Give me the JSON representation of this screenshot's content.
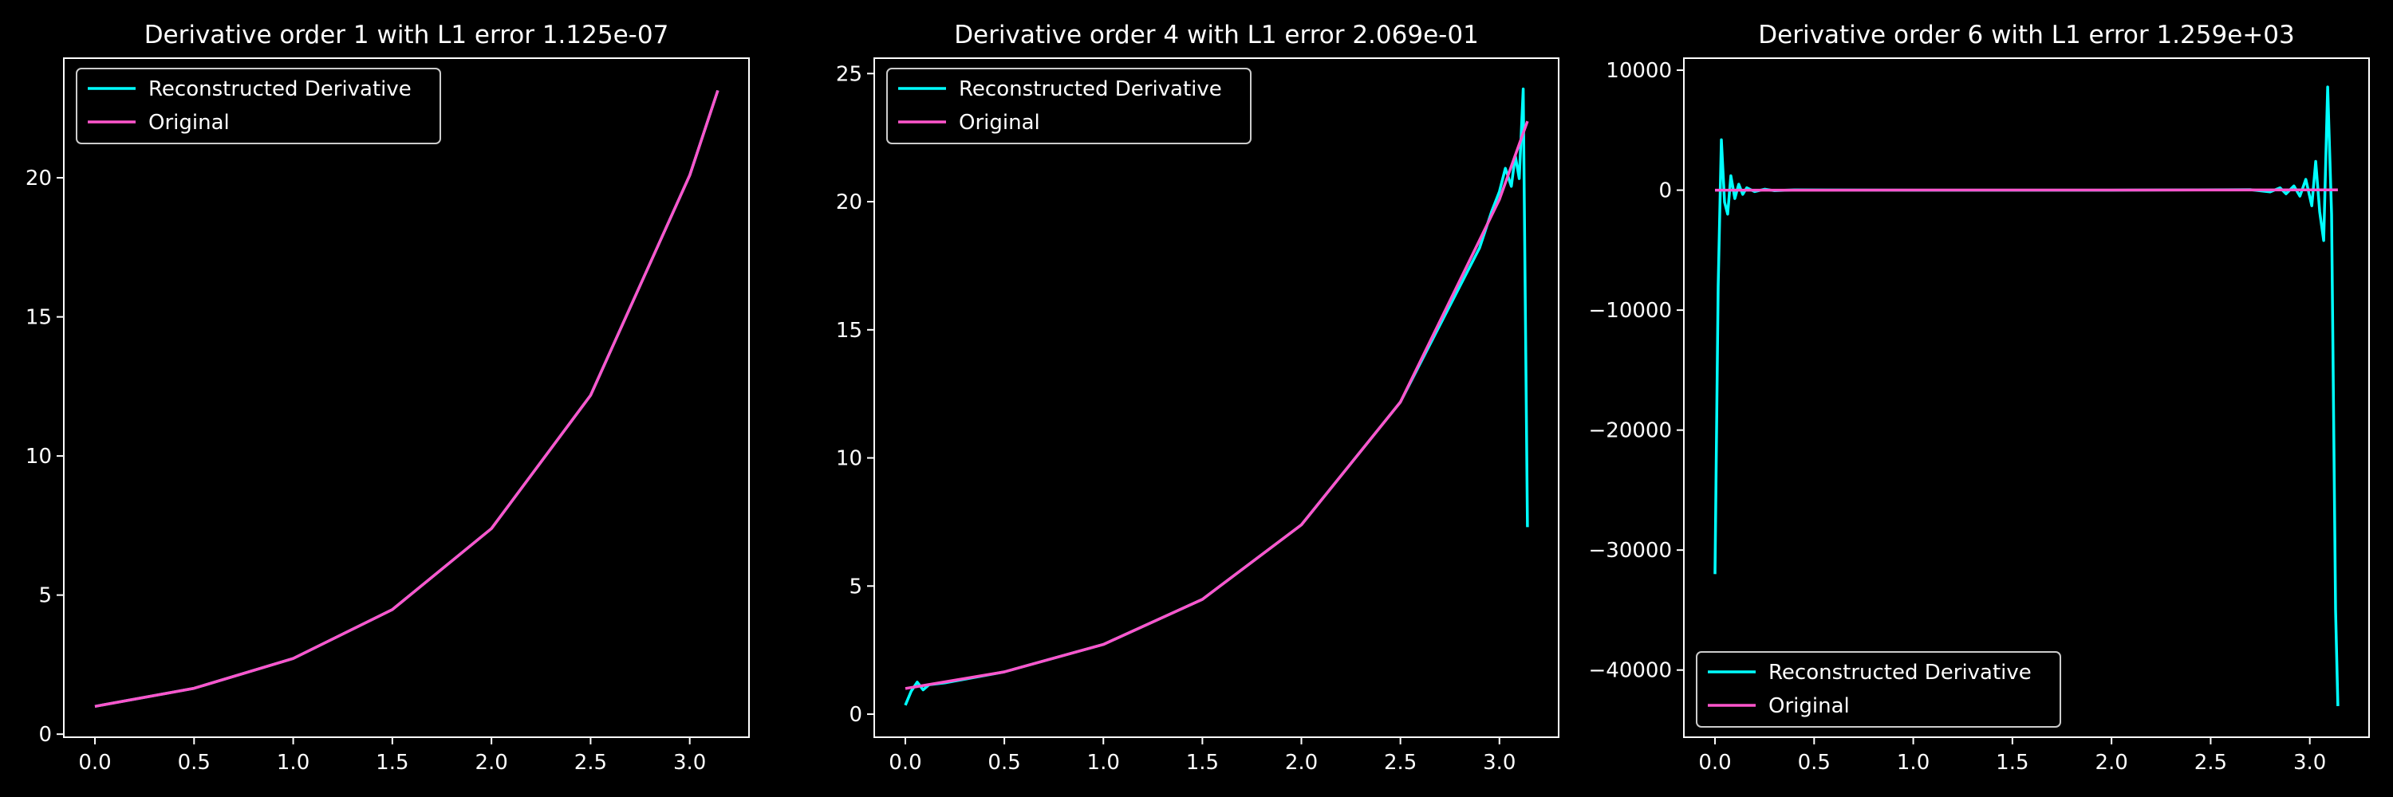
{
  "figure": {
    "background": "#000000",
    "foreground": "#ffffff"
  },
  "chart_data": [
    {
      "type": "line",
      "title": "Derivative order 1 with L1 error 1.125e-07",
      "xlabel": "",
      "ylabel": "",
      "xlim": [
        -0.157,
        3.299
      ],
      "ylim": [
        -0.11,
        24.3
      ],
      "xticks": [
        {
          "value": 0.0,
          "label": "0.0"
        },
        {
          "value": 0.5,
          "label": "0.5"
        },
        {
          "value": 1.0,
          "label": "1.0"
        },
        {
          "value": 1.5,
          "label": "1.5"
        },
        {
          "value": 2.0,
          "label": "2.0"
        },
        {
          "value": 2.5,
          "label": "2.5"
        },
        {
          "value": 3.0,
          "label": "3.0"
        }
      ],
      "yticks": [
        {
          "value": 0,
          "label": "0"
        },
        {
          "value": 5,
          "label": "5"
        },
        {
          "value": 10,
          "label": "10"
        },
        {
          "value": 15,
          "label": "15"
        },
        {
          "value": 20,
          "label": "20"
        }
      ],
      "grid": false,
      "legend": {
        "position": "upper-left"
      },
      "series": [
        {
          "name": "Reconstructed Derivative",
          "color": "#00ffff",
          "x": [
            0,
            0.5,
            1.0,
            1.5,
            2.0,
            2.5,
            3.0,
            3.1416
          ],
          "y": [
            1.0,
            1.65,
            2.72,
            4.48,
            7.39,
            12.18,
            20.09,
            23.14
          ]
        },
        {
          "name": "Original",
          "color": "#ff55cc",
          "x": [
            0,
            0.5,
            1.0,
            1.5,
            2.0,
            2.5,
            3.0,
            3.1416
          ],
          "y": [
            1.0,
            1.65,
            2.72,
            4.48,
            7.39,
            12.18,
            20.09,
            23.14
          ]
        }
      ]
    },
    {
      "type": "line",
      "title": "Derivative order 4 with L1 error 2.069e-01",
      "xlabel": "",
      "ylabel": "",
      "xlim": [
        -0.157,
        3.299
      ],
      "ylim": [
        -0.9,
        25.6
      ],
      "xticks": [
        {
          "value": 0.0,
          "label": "0.0"
        },
        {
          "value": 0.5,
          "label": "0.5"
        },
        {
          "value": 1.0,
          "label": "1.0"
        },
        {
          "value": 1.5,
          "label": "1.5"
        },
        {
          "value": 2.0,
          "label": "2.0"
        },
        {
          "value": 2.5,
          "label": "2.5"
        },
        {
          "value": 3.0,
          "label": "3.0"
        }
      ],
      "yticks": [
        {
          "value": 0,
          "label": "0"
        },
        {
          "value": 5,
          "label": "5"
        },
        {
          "value": 10,
          "label": "10"
        },
        {
          "value": 15,
          "label": "15"
        },
        {
          "value": 20,
          "label": "20"
        },
        {
          "value": 25,
          "label": "25"
        }
      ],
      "grid": false,
      "legend": {
        "position": "upper-left"
      },
      "series": [
        {
          "name": "Reconstructed Derivative",
          "color": "#00ffff",
          "x": [
            0,
            0.03,
            0.06,
            0.09,
            0.12,
            0.2,
            0.5,
            1.0,
            1.5,
            2.0,
            2.5,
            2.9,
            2.96,
            3.0,
            3.03,
            3.06,
            3.08,
            3.1,
            3.12,
            3.1416
          ],
          "y": [
            0.35,
            0.9,
            1.25,
            0.95,
            1.15,
            1.22,
            1.65,
            2.72,
            4.48,
            7.39,
            12.18,
            18.2,
            19.6,
            20.4,
            21.3,
            20.6,
            21.8,
            20.9,
            24.4,
            7.3
          ]
        },
        {
          "name": "Original",
          "color": "#ff55cc",
          "x": [
            0,
            0.5,
            1.0,
            1.5,
            2.0,
            2.5,
            3.0,
            3.1416
          ],
          "y": [
            1.0,
            1.65,
            2.72,
            4.48,
            7.39,
            12.18,
            20.09,
            23.14
          ]
        }
      ]
    },
    {
      "type": "line",
      "title": "Derivative order 6 with L1 error 1.259e+03",
      "xlabel": "",
      "ylabel": "",
      "xlim": [
        -0.157,
        3.299
      ],
      "ylim": [
        -45600,
        11000
      ],
      "xticks": [
        {
          "value": 0.0,
          "label": "0.0"
        },
        {
          "value": 0.5,
          "label": "0.5"
        },
        {
          "value": 1.0,
          "label": "1.0"
        },
        {
          "value": 1.5,
          "label": "1.5"
        },
        {
          "value": 2.0,
          "label": "2.0"
        },
        {
          "value": 2.5,
          "label": "2.5"
        },
        {
          "value": 3.0,
          "label": "3.0"
        }
      ],
      "yticks": [
        {
          "value": 10000,
          "label": "10000"
        },
        {
          "value": 0,
          "label": "0"
        },
        {
          "value": -10000,
          "label": "−10000"
        },
        {
          "value": -20000,
          "label": "−20000"
        },
        {
          "value": -30000,
          "label": "−30000"
        },
        {
          "value": -40000,
          "label": "−40000"
        }
      ],
      "grid": false,
      "legend": {
        "position": "lower-left"
      },
      "series": [
        {
          "name": "Reconstructed Derivative",
          "color": "#00ffff",
          "x": [
            0,
            0.016,
            0.032,
            0.048,
            0.064,
            0.08,
            0.1,
            0.12,
            0.14,
            0.16,
            0.2,
            0.25,
            0.3,
            0.4,
            1.0,
            2.0,
            2.7,
            2.8,
            2.85,
            2.88,
            2.92,
            2.95,
            2.98,
            3.01,
            3.03,
            3.05,
            3.07,
            3.09,
            3.11,
            3.13,
            3.1416
          ],
          "y": [
            -32000,
            -8000,
            4200,
            -1000,
            -2000,
            1200,
            -700,
            500,
            -350,
            200,
            -120,
            80,
            -50,
            20,
            0,
            0,
            40,
            -150,
            200,
            -300,
            350,
            -500,
            900,
            -1300,
            2400,
            -1800,
            -4200,
            8600,
            -2000,
            -35000,
            -43000
          ]
        },
        {
          "name": "Original",
          "color": "#ff55cc",
          "x": [
            0,
            0.5,
            1.0,
            1.5,
            2.0,
            2.5,
            3.0,
            3.1416
          ],
          "y": [
            1.0,
            1.65,
            2.72,
            4.48,
            7.39,
            12.18,
            20.09,
            23.14
          ]
        }
      ]
    }
  ]
}
